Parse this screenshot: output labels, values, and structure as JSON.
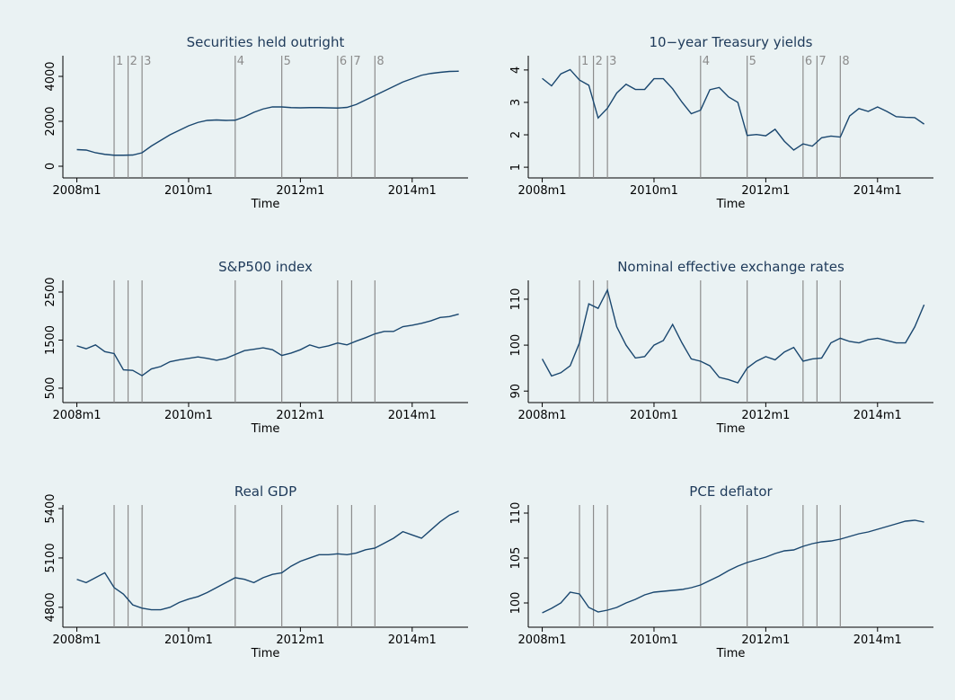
{
  "chart_data": [
    {
      "type": "line",
      "title": "Securities held outright",
      "x_label": "Time",
      "color": "#1a476f",
      "x": [
        576,
        578,
        580,
        582,
        584,
        586,
        588,
        590,
        592,
        594,
        596,
        598,
        600,
        602,
        604,
        606,
        608,
        610,
        612,
        614,
        616,
        618,
        620,
        622,
        624,
        626,
        628,
        630,
        632,
        634,
        636,
        638,
        640,
        642,
        644,
        646,
        648,
        650,
        652,
        654,
        656,
        658
      ],
      "values": [
        740,
        720,
        600,
        530,
        490,
        490,
        500,
        600,
        900,
        1150,
        1400,
        1600,
        1800,
        1950,
        2040,
        2060,
        2040,
        2050,
        2200,
        2400,
        2550,
        2640,
        2640,
        2610,
        2600,
        2610,
        2610,
        2600,
        2590,
        2620,
        2750,
        2950,
        3150,
        3350,
        3550,
        3750,
        3900,
        4050,
        4130,
        4180,
        4220,
        4230
      ],
      "xlim": [
        573,
        660
      ],
      "xticks": [
        {
          "value": 576,
          "label": "2008m1"
        },
        {
          "value": 600,
          "label": "2010m1"
        },
        {
          "value": 624,
          "label": "2012m1"
        },
        {
          "value": 648,
          "label": "2014m1"
        }
      ],
      "ylim": [
        -520,
        4920
      ],
      "yticks": [
        0,
        2000,
        4000
      ],
      "vlines": [
        584,
        587,
        590,
        610,
        620,
        632,
        635,
        640
      ],
      "vline_labels": [
        "1",
        "2",
        "3",
        "4",
        "5",
        "6",
        "7",
        "8"
      ]
    },
    {
      "type": "line",
      "title": "10−year Treasury yields",
      "x_label": "Time",
      "color": "#1a476f",
      "x": [
        576,
        578,
        580,
        582,
        584,
        586,
        588,
        590,
        592,
        594,
        596,
        598,
        600,
        602,
        604,
        606,
        608,
        610,
        612,
        614,
        616,
        618,
        620,
        622,
        624,
        626,
        628,
        630,
        632,
        634,
        636,
        638,
        640,
        642,
        644,
        646,
        648,
        650,
        652,
        654,
        656,
        658
      ],
      "values": [
        3.74,
        3.51,
        3.88,
        4.01,
        3.69,
        3.53,
        2.52,
        2.82,
        3.29,
        3.56,
        3.4,
        3.4,
        3.73,
        3.73,
        3.42,
        3.01,
        2.65,
        2.76,
        3.39,
        3.46,
        3.17,
        3.0,
        1.98,
        2.01,
        1.97,
        2.17,
        1.8,
        1.53,
        1.72,
        1.65,
        1.91,
        1.96,
        1.93,
        2.58,
        2.81,
        2.72,
        2.86,
        2.72,
        2.56,
        2.54,
        2.53,
        2.33
      ],
      "xlim": [
        573,
        660
      ],
      "xticks": [
        {
          "value": 576,
          "label": "2008m1"
        },
        {
          "value": 600,
          "label": "2010m1"
        },
        {
          "value": 624,
          "label": "2012m1"
        },
        {
          "value": 648,
          "label": "2014m1"
        }
      ],
      "ylim": [
        0.67,
        4.44
      ],
      "yticks": [
        1,
        2,
        3,
        4
      ],
      "vlines": [
        584,
        587,
        590,
        610,
        620,
        632,
        635,
        640
      ],
      "vline_labels": [
        "1",
        "2",
        "3",
        "4",
        "5",
        "6",
        "7",
        "8"
      ]
    },
    {
      "type": "line",
      "title": "S&P500 index",
      "x_label": "Time",
      "color": "#1a476f",
      "x": [
        576,
        578,
        580,
        582,
        584,
        586,
        588,
        590,
        592,
        594,
        596,
        598,
        600,
        602,
        604,
        606,
        608,
        610,
        612,
        614,
        616,
        618,
        620,
        622,
        624,
        626,
        628,
        630,
        632,
        634,
        636,
        638,
        640,
        642,
        644,
        646,
        648,
        650,
        652,
        654,
        656,
        658
      ],
      "values": [
        1380,
        1320,
        1400,
        1260,
        1220,
        880,
        870,
        760,
        900,
        950,
        1050,
        1090,
        1120,
        1150,
        1120,
        1080,
        1120,
        1200,
        1280,
        1310,
        1340,
        1300,
        1180,
        1230,
        1300,
        1400,
        1340,
        1380,
        1440,
        1400,
        1480,
        1550,
        1630,
        1680,
        1680,
        1780,
        1810,
        1850,
        1900,
        1970,
        1990,
        2040
      ],
      "xlim": [
        573,
        660
      ],
      "xticks": [
        {
          "value": 576,
          "label": "2008m1"
        },
        {
          "value": 600,
          "label": "2010m1"
        },
        {
          "value": 624,
          "label": "2012m1"
        },
        {
          "value": 648,
          "label": "2014m1"
        }
      ],
      "ylim": [
        200,
        2743
      ],
      "yticks": [
        500,
        1500,
        2500
      ],
      "vlines": [
        584,
        587,
        590,
        610,
        620,
        632,
        635,
        640
      ]
    },
    {
      "type": "line",
      "title": "Nominal effective exchange rates",
      "x_label": "Time",
      "color": "#1a476f",
      "x": [
        576,
        578,
        580,
        582,
        584,
        586,
        588,
        590,
        592,
        594,
        596,
        598,
        600,
        602,
        604,
        606,
        608,
        610,
        612,
        614,
        616,
        618,
        620,
        622,
        624,
        626,
        628,
        630,
        632,
        634,
        636,
        638,
        640,
        642,
        644,
        646,
        648,
        650,
        652,
        654,
        656,
        658
      ],
      "values": [
        97,
        93.3,
        94,
        95.5,
        100.5,
        109,
        108,
        112,
        104,
        100,
        97.2,
        97.5,
        100,
        101,
        104.5,
        100.5,
        97,
        96.5,
        95.5,
        93,
        92.5,
        91.8,
        95,
        96.5,
        97.5,
        96.8,
        98.5,
        99.5,
        96.5,
        97,
        97.2,
        100.5,
        101.5,
        100.8,
        100.5,
        101.2,
        101.5,
        101,
        100.5,
        100.5,
        104,
        108.8
      ],
      "xlim": [
        573,
        660
      ],
      "xticks": [
        {
          "value": 576,
          "label": "2008m1"
        },
        {
          "value": 600,
          "label": "2010m1"
        },
        {
          "value": 624,
          "label": "2012m1"
        },
        {
          "value": 648,
          "label": "2014m1"
        }
      ],
      "ylim": [
        87.5,
        114.1
      ],
      "yticks": [
        90,
        100,
        110
      ],
      "vlines": [
        584,
        587,
        590,
        610,
        620,
        632,
        635,
        640
      ]
    },
    {
      "type": "line",
      "title": "Real GDP",
      "x_label": "Time",
      "color": "#1a476f",
      "x": [
        576,
        578,
        580,
        582,
        584,
        586,
        588,
        590,
        592,
        594,
        596,
        598,
        600,
        602,
        604,
        606,
        608,
        610,
        612,
        614,
        616,
        618,
        620,
        622,
        624,
        626,
        628,
        630,
        632,
        634,
        636,
        638,
        640,
        642,
        644,
        646,
        648,
        650,
        652,
        654,
        656,
        658
      ],
      "values": [
        4970,
        4950,
        4980,
        5010,
        4920,
        4880,
        4815,
        4795,
        4785,
        4785,
        4800,
        4830,
        4850,
        4865,
        4890,
        4920,
        4950,
        4980,
        4970,
        4950,
        4980,
        5000,
        5010,
        5050,
        5080,
        5100,
        5120,
        5120,
        5125,
        5120,
        5130,
        5150,
        5160,
        5190,
        5220,
        5260,
        5240,
        5220,
        5270,
        5320,
        5360,
        5385
      ],
      "xlim": [
        573,
        660
      ],
      "xticks": [
        {
          "value": 576,
          "label": "2008m1"
        },
        {
          "value": 600,
          "label": "2010m1"
        },
        {
          "value": 624,
          "label": "2012m1"
        },
        {
          "value": 648,
          "label": "2014m1"
        }
      ],
      "ylim": [
        4679,
        5422
      ],
      "yticks": [
        4800,
        5100,
        5400
      ],
      "vlines": [
        584,
        587,
        590,
        610,
        620,
        632,
        635,
        640
      ]
    },
    {
      "type": "line",
      "title": "PCE deflator",
      "x_label": "Time",
      "color": "#1a476f",
      "x": [
        576,
        578,
        580,
        582,
        584,
        586,
        588,
        590,
        592,
        594,
        596,
        598,
        600,
        602,
        604,
        606,
        608,
        610,
        612,
        614,
        616,
        618,
        620,
        622,
        624,
        626,
        628,
        630,
        632,
        634,
        636,
        638,
        640,
        642,
        644,
        646,
        648,
        650,
        652,
        654,
        656,
        658
      ],
      "values": [
        98.9,
        99.4,
        100.0,
        101.2,
        101.0,
        99.5,
        99.0,
        99.2,
        99.5,
        100.0,
        100.4,
        100.9,
        101.2,
        101.3,
        101.4,
        101.5,
        101.7,
        102.0,
        102.5,
        103.0,
        103.6,
        104.1,
        104.5,
        104.8,
        105.1,
        105.5,
        105.8,
        105.9,
        106.3,
        106.6,
        106.8,
        106.9,
        107.1,
        107.4,
        107.7,
        107.9,
        108.2,
        108.5,
        108.8,
        109.1,
        109.2,
        109.0
      ],
      "xlim": [
        573,
        660
      ],
      "xticks": [
        {
          "value": 576,
          "label": "2008m1"
        },
        {
          "value": 600,
          "label": "2010m1"
        },
        {
          "value": 624,
          "label": "2012m1"
        },
        {
          "value": 648,
          "label": "2014m1"
        }
      ],
      "ylim": [
        97.3,
        110.9
      ],
      "yticks": [
        100,
        105,
        110
      ],
      "vlines": [
        584,
        587,
        590,
        610,
        620,
        632,
        635,
        640
      ]
    }
  ]
}
